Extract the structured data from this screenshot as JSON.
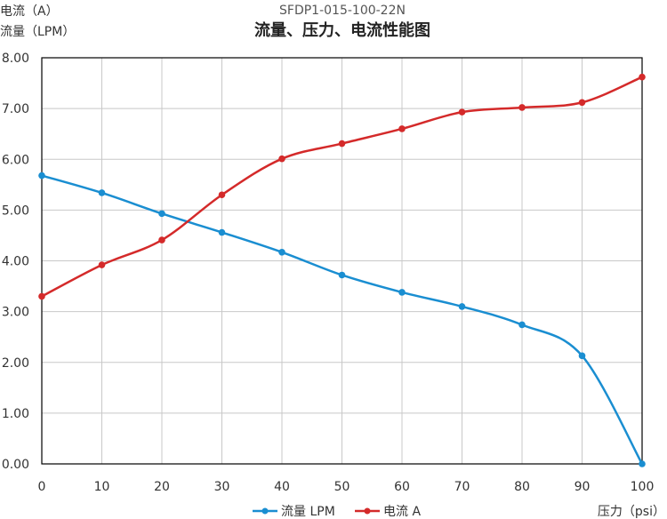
{
  "chart_data": {
    "type": "line",
    "title": "SFDP1-015-100-22N",
    "subtitle": "流量、压力、电流性能图",
    "ylabel_lines": [
      "电流（A）",
      "流量（LPM）"
    ],
    "xlabel": "压力（psi）",
    "x": [
      0,
      10,
      20,
      30,
      40,
      50,
      60,
      70,
      80,
      90,
      100
    ],
    "xlim": [
      0,
      100
    ],
    "ylim": [
      0,
      8
    ],
    "x_ticks": [
      "0",
      "10",
      "20",
      "30",
      "40",
      "50",
      "60",
      "70",
      "80",
      "90",
      "100"
    ],
    "y_ticks": [
      "0.00",
      "1.00",
      "2.00",
      "3.00",
      "4.00",
      "5.00",
      "6.00",
      "7.00",
      "8.00"
    ],
    "grid": true,
    "legend_position": "bottom",
    "series": [
      {
        "name": "流量 LPM",
        "color": "#1a8ed1",
        "values": [
          5.68,
          5.34,
          4.93,
          4.56,
          4.17,
          3.72,
          3.38,
          3.1,
          2.74,
          2.13,
          0.0
        ]
      },
      {
        "name": "电流 A",
        "color": "#d42a2a",
        "values": [
          3.3,
          3.92,
          4.41,
          5.3,
          6.01,
          6.31,
          6.6,
          6.93,
          7.02,
          7.12,
          7.62
        ]
      }
    ]
  }
}
